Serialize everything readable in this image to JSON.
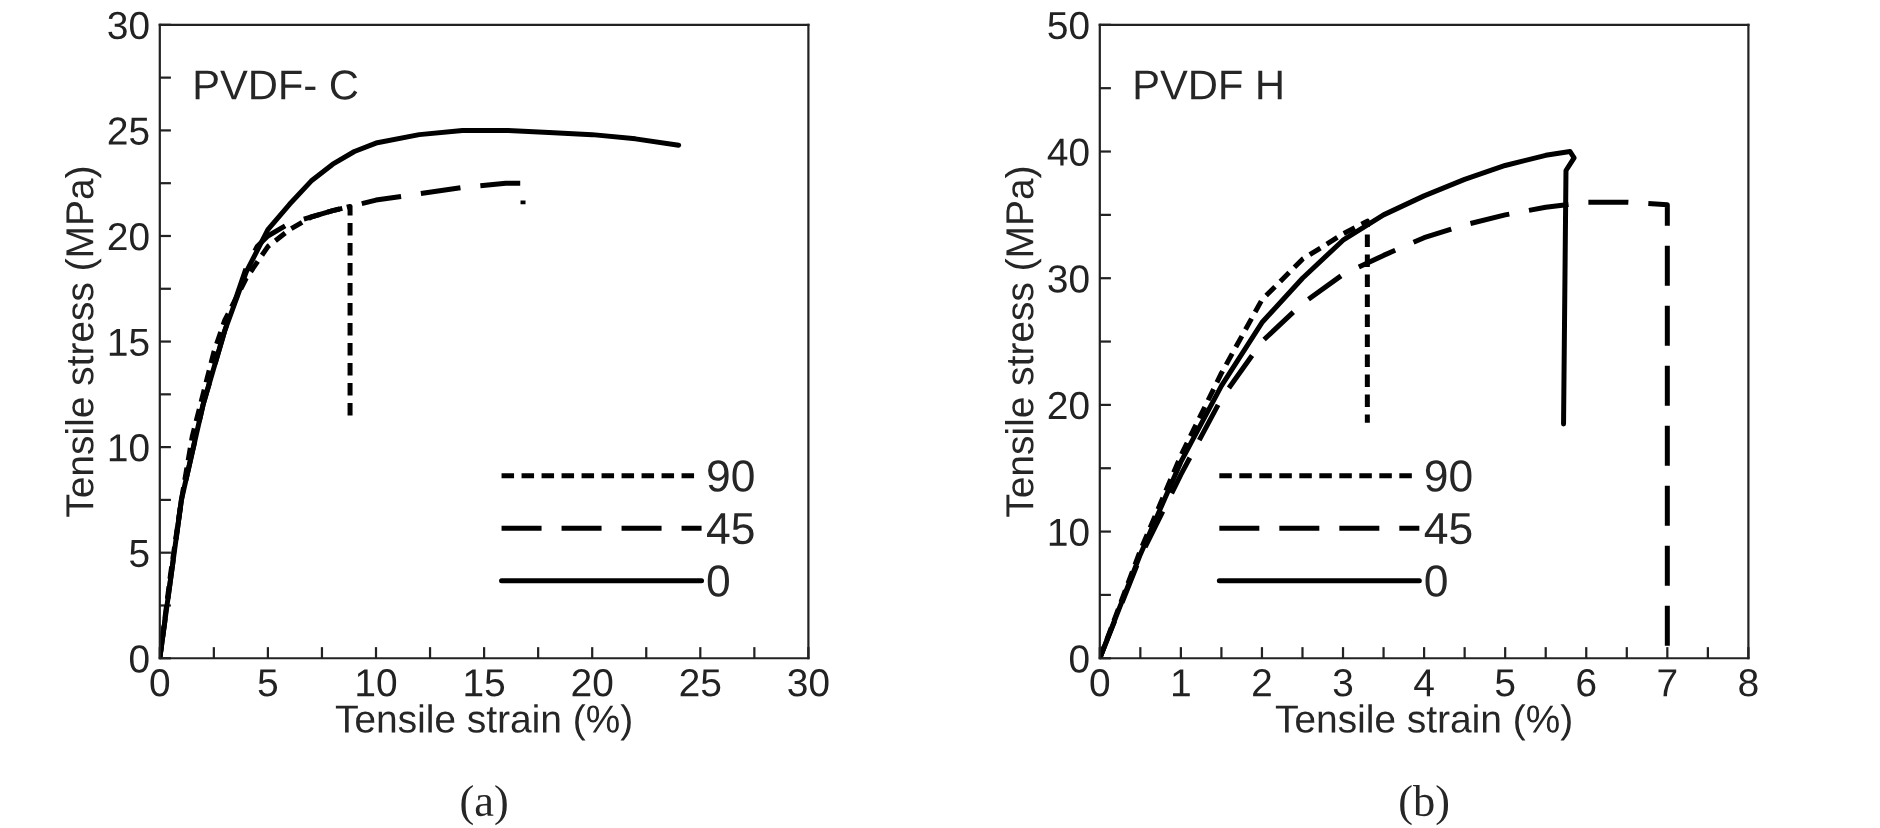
{
  "chart_data": [
    {
      "type": "line",
      "title": "PVDF- C",
      "xlabel": "Tensile strain (%)",
      "ylabel": "Tensile stress (MPa)",
      "annotations": [
        "(a)"
      ],
      "xlim": [
        0,
        30
      ],
      "ylim": [
        0,
        30
      ],
      "xticks": [
        0,
        {
          "value": 2.5,
          "label": null
        },
        5,
        {
          "value": 7.5,
          "label": null
        },
        10,
        {
          "value": 12.5,
          "label": null
        },
        15,
        {
          "value": 17.5,
          "label": null
        },
        20,
        {
          "value": 22.5,
          "label": null
        },
        25,
        {
          "value": 27.5,
          "label": null
        },
        30
      ],
      "yticks": [
        0,
        {
          "value": 2.5,
          "label": null
        },
        5,
        {
          "value": 7.5,
          "label": null
        },
        10,
        {
          "value": 12.5,
          "label": null
        },
        15,
        {
          "value": 17.5,
          "label": null
        },
        20,
        {
          "value": 22.5,
          "label": null
        },
        25,
        {
          "value": 27.5,
          "label": null
        },
        30
      ],
      "legend": "bottom right",
      "grid": false,
      "series": [
        {
          "name": "90",
          "color": "#000000",
          "line_style": "dotted",
          "x": [
            0,
            0.5,
            1,
            1.5,
            2,
            2.5,
            3,
            4,
            5,
            6,
            7,
            8,
            8.8,
            8.8
          ],
          "values": [
            0,
            4,
            7.5,
            10.5,
            12.5,
            14.5,
            16,
            18,
            19.5,
            20.3,
            20.9,
            21.2,
            21.4,
            11.2
          ]
        },
        {
          "name": "45",
          "color": "#000000",
          "line_style": "dashed",
          "x": [
            0,
            1,
            2,
            3,
            4,
            4.5,
            5,
            6,
            8,
            10,
            12,
            14,
            16,
            16.8,
            16.8
          ],
          "values": [
            0,
            7.5,
            12,
            15.5,
            18.5,
            19.5,
            20,
            20.6,
            21.2,
            21.7,
            22,
            22.3,
            22.5,
            22.5,
            21.5
          ]
        },
        {
          "name": "0",
          "color": "#000000",
          "line_style": "solid",
          "x": [
            0,
            1,
            2,
            3,
            4,
            5,
            6,
            7,
            8,
            9,
            10,
            12,
            14,
            16,
            18,
            20,
            22,
            24
          ],
          "values": [
            0,
            7.5,
            12,
            15.5,
            18.3,
            20.3,
            21.5,
            22.6,
            23.4,
            24,
            24.4,
            24.8,
            25,
            25,
            24.9,
            24.8,
            24.6,
            24.3
          ]
        }
      ]
    },
    {
      "type": "line",
      "title": "PVDF H",
      "xlabel": "Tensile strain (%)",
      "ylabel": "Tensile stress (MPa)",
      "annotations": [
        "(b)"
      ],
      "xlim": [
        0,
        8
      ],
      "ylim": [
        0,
        50
      ],
      "xticks": [
        0,
        {
          "value": 0.5,
          "label": null
        },
        1,
        {
          "value": 1.5,
          "label": null
        },
        2,
        {
          "value": 2.5,
          "label": null
        },
        3,
        {
          "value": 3.5,
          "label": null
        },
        4,
        {
          "value": 4.5,
          "label": null
        },
        5,
        {
          "value": 5.5,
          "label": null
        },
        6,
        {
          "value": 6.5,
          "label": null
        },
        7,
        {
          "value": 7.5,
          "label": null
        },
        8
      ],
      "yticks": [
        0,
        {
          "value": 5,
          "label": null
        },
        10,
        {
          "value": 15,
          "label": null
        },
        20,
        {
          "value": 25,
          "label": null
        },
        30,
        {
          "value": 35,
          "label": null
        },
        40,
        {
          "value": 45,
          "label": null
        },
        50
      ],
      "legend": "bottom",
      "grid": false,
      "series": [
        {
          "name": "90",
          "color": "#000000",
          "line_style": "dotted",
          "x": [
            0,
            0.5,
            1,
            1.5,
            2,
            2.5,
            3,
            3.3,
            3.3
          ],
          "values": [
            0,
            8.5,
            16,
            22.5,
            28.3,
            31.5,
            33.5,
            34.5,
            18.6
          ]
        },
        {
          "name": "45",
          "color": "#000000",
          "line_style": "dashed",
          "x": [
            0,
            0.5,
            1,
            1.5,
            2,
            2.5,
            3,
            3.5,
            4,
            4.5,
            5,
            5.5,
            6,
            6.5,
            7,
            7
          ],
          "values": [
            0,
            8,
            14.5,
            20.5,
            25,
            28,
            30.3,
            31.8,
            33.2,
            34.2,
            35,
            35.6,
            36,
            36,
            35.8,
            0
          ]
        },
        {
          "name": "0",
          "color": "#000000",
          "line_style": "solid",
          "x": [
            0,
            0.5,
            1,
            1.5,
            2,
            2.5,
            3,
            3.5,
            4,
            4.5,
            5,
            5.5,
            5.8,
            5.85,
            5.75,
            5.72
          ],
          "values": [
            0,
            8.2,
            15.5,
            21.5,
            26.5,
            30,
            33,
            35,
            36.5,
            37.8,
            38.9,
            39.7,
            40,
            39.5,
            38.5,
            18.5
          ]
        }
      ]
    }
  ]
}
